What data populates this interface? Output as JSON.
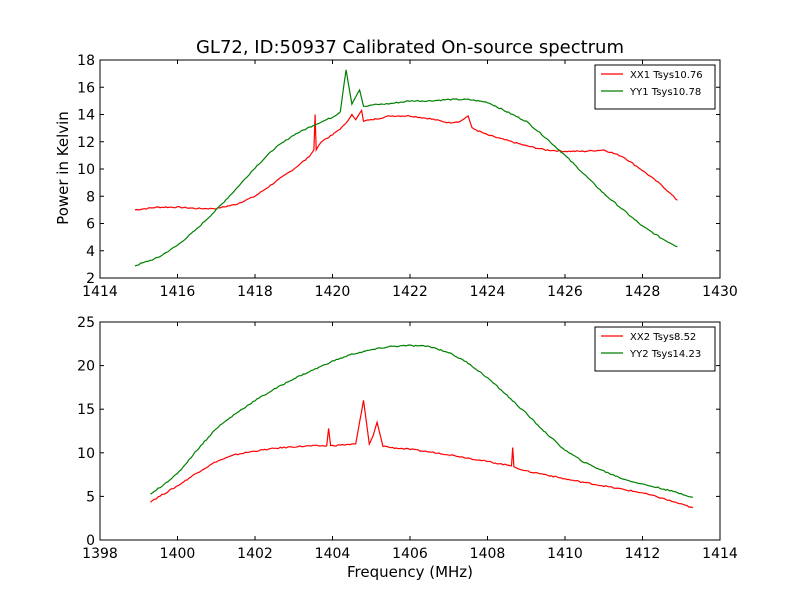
{
  "figure": {
    "title": "GL72, ID:50937 Calibrated On-source spectrum",
    "ylabel": "Power in Kelvin",
    "xlabel": "Frequency (MHz)"
  },
  "chart_data": [
    {
      "type": "line",
      "title": "GL72, ID:50937 Calibrated On-source spectrum",
      "ylabel": "Power in Kelvin",
      "xlabel": "",
      "xlim": [
        1414,
        1430
      ],
      "ylim": [
        2,
        18
      ],
      "xticks": [
        1414,
        1416,
        1418,
        1420,
        1422,
        1424,
        1426,
        1428,
        1430
      ],
      "yticks": [
        2,
        4,
        6,
        8,
        10,
        12,
        14,
        16,
        18
      ],
      "grid": false,
      "legend_position": "top-right",
      "series": [
        {
          "name": "XX1 Tsys10.76",
          "color": "#ff0000",
          "x": [
            1414.9,
            1415.5,
            1416.0,
            1416.5,
            1417.0,
            1417.5,
            1418.0,
            1418.5,
            1419.0,
            1419.4,
            1419.52,
            1419.55,
            1419.58,
            1419.7,
            1420.0,
            1420.3,
            1420.5,
            1420.6,
            1420.75,
            1420.8,
            1420.9,
            1421.0,
            1421.5,
            1422.0,
            1422.5,
            1423.0,
            1423.3,
            1423.5,
            1423.6,
            1424.0,
            1424.5,
            1425.0,
            1425.5,
            1426.0,
            1426.5,
            1427.0,
            1427.5,
            1428.0,
            1428.5,
            1428.9
          ],
          "values": [
            7.0,
            7.2,
            7.2,
            7.1,
            7.1,
            7.4,
            8.0,
            9.0,
            10.0,
            10.9,
            11.4,
            14.0,
            11.4,
            12.0,
            12.5,
            13.2,
            14.0,
            13.6,
            14.3,
            13.5,
            13.6,
            13.6,
            13.9,
            13.9,
            13.7,
            13.4,
            13.5,
            13.9,
            13.0,
            12.5,
            12.1,
            11.7,
            11.4,
            11.3,
            11.3,
            11.4,
            10.9,
            9.9,
            8.8,
            7.7
          ]
        },
        {
          "name": "YY1 Tsys10.78",
          "color": "#008000",
          "x": [
            1414.9,
            1415.5,
            1416.0,
            1416.5,
            1417.0,
            1417.5,
            1418.0,
            1418.5,
            1419.0,
            1419.5,
            1420.0,
            1420.2,
            1420.35,
            1420.5,
            1420.7,
            1420.8,
            1420.9,
            1421.0,
            1421.5,
            1422.0,
            1422.5,
            1423.0,
            1423.5,
            1424.0,
            1424.5,
            1425.0,
            1425.5,
            1426.0,
            1426.5,
            1427.0,
            1427.5,
            1428.0,
            1428.5,
            1428.9
          ],
          "values": [
            2.9,
            3.5,
            4.4,
            5.6,
            7.0,
            8.5,
            10.1,
            11.5,
            12.5,
            13.2,
            13.8,
            14.2,
            17.3,
            14.8,
            15.8,
            14.6,
            14.6,
            14.7,
            14.8,
            15.0,
            15.0,
            15.1,
            15.1,
            14.9,
            14.2,
            13.5,
            12.3,
            11.0,
            9.6,
            8.2,
            7.0,
            5.8,
            4.9,
            4.3
          ]
        }
      ]
    },
    {
      "type": "line",
      "title": "",
      "ylabel": "",
      "xlabel": "Frequency (MHz)",
      "xlim": [
        1398,
        1414
      ],
      "ylim": [
        0,
        25
      ],
      "xticks": [
        1398,
        1400,
        1402,
        1404,
        1406,
        1408,
        1410,
        1412,
        1414
      ],
      "yticks": [
        0,
        5,
        10,
        15,
        20,
        25
      ],
      "grid": false,
      "legend_position": "top-right",
      "series": [
        {
          "name": "XX2 Tsys8.52",
          "color": "#ff0000",
          "x": [
            1399.3,
            1400.0,
            1400.5,
            1401.0,
            1401.5,
            1402.0,
            1402.5,
            1403.0,
            1403.5,
            1403.85,
            1403.9,
            1403.95,
            1404.2,
            1404.6,
            1404.8,
            1404.95,
            1405.05,
            1405.15,
            1405.3,
            1405.5,
            1406.0,
            1406.5,
            1407.0,
            1407.5,
            1408.0,
            1408.5,
            1408.62,
            1408.65,
            1408.68,
            1409.0,
            1409.5,
            1410.0,
            1410.5,
            1411.0,
            1411.5,
            1412.0,
            1412.5,
            1413.0,
            1413.3
          ],
          "values": [
            4.4,
            6.2,
            7.7,
            9.0,
            9.8,
            10.2,
            10.5,
            10.7,
            10.8,
            10.8,
            12.8,
            10.8,
            10.9,
            11.0,
            16.0,
            11.0,
            12.0,
            13.5,
            10.8,
            10.6,
            10.4,
            10.1,
            9.8,
            9.4,
            9.0,
            8.6,
            8.5,
            10.6,
            8.4,
            7.9,
            7.5,
            7.0,
            6.6,
            6.2,
            5.8,
            5.4,
            4.8,
            4.1,
            3.7
          ]
        },
        {
          "name": "YY2 Tsys14.23",
          "color": "#008000",
          "x": [
            1399.3,
            1400.0,
            1400.5,
            1401.0,
            1401.5,
            1402.0,
            1402.5,
            1403.0,
            1403.5,
            1404.0,
            1404.5,
            1405.0,
            1405.5,
            1406.0,
            1406.5,
            1407.0,
            1407.5,
            1408.0,
            1408.5,
            1409.0,
            1409.5,
            1410.0,
            1410.5,
            1411.0,
            1411.5,
            1412.0,
            1412.5,
            1413.0,
            1413.3
          ],
          "values": [
            5.2,
            7.6,
            10.3,
            12.8,
            14.5,
            16.0,
            17.3,
            18.5,
            19.5,
            20.5,
            21.3,
            21.8,
            22.2,
            22.3,
            22.2,
            21.5,
            20.3,
            18.6,
            16.6,
            14.5,
            12.3,
            10.3,
            8.9,
            7.9,
            7.0,
            6.4,
            5.9,
            5.3,
            4.9
          ]
        }
      ]
    }
  ]
}
